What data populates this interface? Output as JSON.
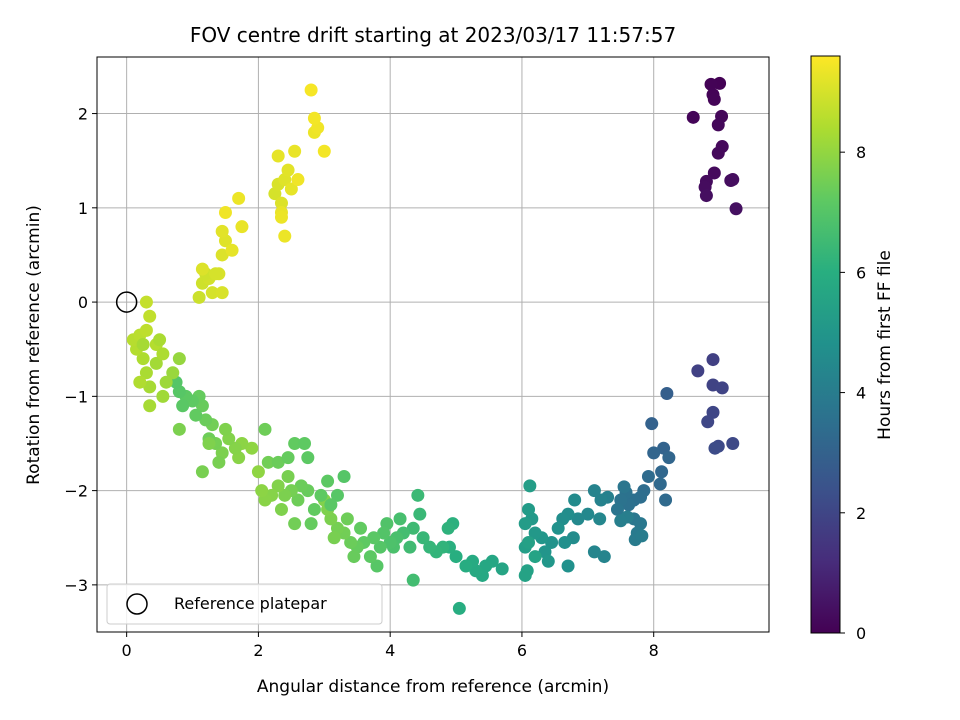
{
  "chart_data": {
    "type": "scatter",
    "title": "FOV centre drift starting at 2023/03/17 11:57:57",
    "xlabel": "Angular distance from reference (arcmin)",
    "ylabel": "Rotation from reference (arcmin)",
    "xlim": [
      -0.45,
      9.75
    ],
    "ylim": [
      -3.5,
      2.6
    ],
    "xticks": [
      0,
      2,
      4,
      6,
      8
    ],
    "yticks": [
      -3,
      -2,
      -1,
      0,
      1,
      2
    ],
    "grid": true,
    "legend": {
      "position": "lower-left",
      "entries": [
        "Reference platepar"
      ]
    },
    "reference_point": {
      "x": 0,
      "y": 0
    },
    "colorbar": {
      "label": "Hours from first FF file",
      "colormap": "viridis",
      "range": [
        0,
        9.6
      ],
      "ticks": [
        0,
        2,
        4,
        6,
        8
      ]
    },
    "points": [
      [
        9.0,
        2.32,
        0.02
      ],
      [
        8.87,
        2.31,
        0.05
      ],
      [
        8.9,
        2.2,
        0.08
      ],
      [
        8.92,
        2.15,
        0.1
      ],
      [
        8.6,
        1.96,
        0.12
      ],
      [
        9.03,
        1.97,
        0.15
      ],
      [
        8.98,
        1.88,
        0.18
      ],
      [
        9.04,
        1.65,
        0.2
      ],
      [
        8.98,
        1.58,
        0.22
      ],
      [
        8.92,
        1.37,
        0.25
      ],
      [
        8.8,
        1.28,
        0.28
      ],
      [
        8.78,
        1.22,
        0.3
      ],
      [
        9.17,
        1.29,
        0.32
      ],
      [
        9.2,
        1.3,
        0.35
      ],
      [
        8.8,
        1.13,
        0.38
      ],
      [
        9.25,
        0.99,
        0.4
      ],
      [
        8.9,
        -0.61,
        1.8
      ],
      [
        8.67,
        -0.73,
        1.85
      ],
      [
        8.9,
        -0.88,
        1.9
      ],
      [
        9.04,
        -0.91,
        1.95
      ],
      [
        8.9,
        -1.17,
        2.0
      ],
      [
        8.82,
        -1.27,
        2.05
      ],
      [
        9.2,
        -1.5,
        2.1
      ],
      [
        8.98,
        -1.53,
        2.15
      ],
      [
        8.93,
        -1.55,
        2.2
      ],
      [
        8.2,
        -0.97,
        2.9
      ],
      [
        7.97,
        -1.29,
        3.0
      ],
      [
        8.15,
        -1.55,
        3.05
      ],
      [
        8.0,
        -1.6,
        3.1
      ],
      [
        8.23,
        -1.65,
        3.15
      ],
      [
        8.12,
        -1.8,
        3.2
      ],
      [
        8.1,
        -1.93,
        3.25
      ],
      [
        8.18,
        -2.1,
        3.3
      ],
      [
        7.92,
        -1.85,
        3.35
      ],
      [
        7.85,
        -2.0,
        3.4
      ],
      [
        7.8,
        -2.07,
        3.45
      ],
      [
        7.7,
        -2.1,
        3.5
      ],
      [
        7.62,
        -2.15,
        3.55
      ],
      [
        7.58,
        -2.02,
        3.6
      ],
      [
        7.5,
        -2.1,
        3.65
      ],
      [
        7.45,
        -2.2,
        3.7
      ],
      [
        7.55,
        -1.96,
        3.75
      ],
      [
        7.7,
        -2.3,
        3.8
      ],
      [
        7.8,
        -2.35,
        3.85
      ],
      [
        7.75,
        -2.45,
        3.9
      ],
      [
        7.72,
        -2.52,
        3.95
      ],
      [
        7.82,
        -2.48,
        4.0
      ],
      [
        7.6,
        -2.28,
        4.05
      ],
      [
        7.5,
        -2.32,
        4.1
      ],
      [
        7.3,
        -2.07,
        4.15
      ],
      [
        7.2,
        -2.1,
        4.2
      ],
      [
        7.1,
        -2.0,
        4.25
      ],
      [
        7.25,
        -2.7,
        4.3
      ],
      [
        7.1,
        -2.65,
        4.35
      ],
      [
        7.18,
        -2.3,
        4.4
      ],
      [
        7.0,
        -2.25,
        4.45
      ],
      [
        6.85,
        -2.3,
        4.5
      ],
      [
        6.8,
        -2.1,
        4.55
      ],
      [
        6.78,
        -2.5,
        4.6
      ],
      [
        6.7,
        -2.25,
        4.65
      ],
      [
        6.62,
        -2.3,
        4.7
      ],
      [
        6.65,
        -2.55,
        4.75
      ],
      [
        6.7,
        -2.8,
        4.8
      ],
      [
        6.55,
        -2.4,
        4.85
      ],
      [
        6.45,
        -2.55,
        4.9
      ],
      [
        6.35,
        -2.65,
        4.95
      ],
      [
        6.3,
        -2.5,
        5.0
      ],
      [
        6.4,
        -2.75,
        5.05
      ],
      [
        6.2,
        -2.45,
        5.1
      ],
      [
        6.15,
        -2.3,
        5.15
      ],
      [
        6.1,
        -2.2,
        5.2
      ],
      [
        6.05,
        -2.35,
        5.25
      ],
      [
        6.12,
        -1.95,
        5.3
      ],
      [
        6.05,
        -2.6,
        5.35
      ],
      [
        6.1,
        -2.55,
        5.4
      ],
      [
        6.08,
        -2.85,
        5.45
      ],
      [
        6.05,
        -2.9,
        5.5
      ],
      [
        6.2,
        -2.7,
        5.55
      ],
      [
        5.7,
        -2.83,
        5.6
      ],
      [
        5.55,
        -2.75,
        5.65
      ],
      [
        5.45,
        -2.8,
        5.7
      ],
      [
        5.4,
        -2.9,
        5.75
      ],
      [
        5.3,
        -2.85,
        5.8
      ],
      [
        5.25,
        -2.75,
        5.85
      ],
      [
        5.15,
        -2.8,
        5.9
      ],
      [
        5.05,
        -3.25,
        5.95
      ],
      [
        5.0,
        -2.7,
        6.0
      ],
      [
        4.9,
        -2.6,
        6.05
      ],
      [
        4.95,
        -2.35,
        6.1
      ],
      [
        4.88,
        -2.4,
        6.15
      ],
      [
        4.8,
        -2.6,
        6.2
      ],
      [
        4.7,
        -2.65,
        6.25
      ],
      [
        4.6,
        -2.6,
        6.3
      ],
      [
        4.5,
        -2.5,
        6.35
      ],
      [
        4.45,
        -2.25,
        6.4
      ],
      [
        4.42,
        -2.05,
        6.45
      ],
      [
        4.35,
        -2.4,
        6.5
      ],
      [
        4.3,
        -2.6,
        6.55
      ],
      [
        4.35,
        -2.95,
        6.6
      ],
      [
        4.2,
        -2.45,
        6.65
      ],
      [
        4.15,
        -2.3,
        6.7
      ],
      [
        4.1,
        -2.5,
        6.75
      ],
      [
        4.05,
        -2.6,
        6.8
      ],
      [
        4.0,
        -2.55,
        6.85
      ],
      [
        3.95,
        -2.35,
        6.9
      ],
      [
        3.9,
        -2.45,
        6.95
      ],
      [
        3.85,
        -2.6,
        7.0
      ],
      [
        3.8,
        -2.8,
        7.05
      ],
      [
        3.75,
        -2.5,
        7.1
      ],
      [
        3.7,
        -2.7,
        7.15
      ],
      [
        3.6,
        -2.55,
        7.2
      ],
      [
        3.55,
        -2.4,
        7.25
      ],
      [
        3.5,
        -2.6,
        7.3
      ],
      [
        3.45,
        -2.7,
        7.35
      ],
      [
        3.4,
        -2.55,
        7.4
      ],
      [
        3.35,
        -2.3,
        7.45
      ],
      [
        3.3,
        -2.45,
        7.5
      ],
      [
        3.2,
        -2.4,
        7.55
      ],
      [
        3.15,
        -2.5,
        7.6
      ],
      [
        3.1,
        -2.3,
        7.65
      ],
      [
        3.05,
        -2.2,
        7.7
      ],
      [
        3.0,
        -2.1,
        7.75
      ],
      [
        3.3,
        -1.85,
        7.0
      ],
      [
        3.2,
        -2.05,
        7.05
      ],
      [
        3.1,
        -2.15,
        7.1
      ],
      [
        3.05,
        -1.9,
        7.15
      ],
      [
        2.95,
        -2.05,
        7.2
      ],
      [
        2.85,
        -2.2,
        7.25
      ],
      [
        2.8,
        -2.35,
        7.3
      ],
      [
        2.75,
        -2.0,
        7.35
      ],
      [
        2.65,
        -1.95,
        7.4
      ],
      [
        2.6,
        -2.1,
        7.45
      ],
      [
        2.55,
        -2.35,
        7.5
      ],
      [
        2.5,
        -2.0,
        7.55
      ],
      [
        2.45,
        -1.85,
        7.6
      ],
      [
        2.4,
        -2.05,
        7.65
      ],
      [
        2.35,
        -2.2,
        7.7
      ],
      [
        2.3,
        -1.95,
        7.75
      ],
      [
        2.2,
        -2.05,
        7.8
      ],
      [
        2.1,
        -2.1,
        7.85
      ],
      [
        2.05,
        -2.0,
        7.9
      ],
      [
        2.0,
        -1.8,
        7.95
      ],
      [
        1.9,
        -1.55,
        7.95
      ],
      [
        1.75,
        -1.5,
        7.9
      ],
      [
        1.7,
        -1.65,
        7.85
      ],
      [
        1.65,
        -1.55,
        7.8
      ],
      [
        1.55,
        -1.45,
        7.75
      ],
      [
        1.5,
        -1.35,
        7.7
      ],
      [
        1.45,
        -1.6,
        7.65
      ],
      [
        1.4,
        -1.7,
        7.6
      ],
      [
        1.35,
        -1.5,
        7.55
      ],
      [
        1.3,
        -1.3,
        7.5
      ],
      [
        1.25,
        -1.45,
        7.45
      ],
      [
        1.2,
        -1.25,
        7.4
      ],
      [
        1.15,
        -1.1,
        7.35
      ],
      [
        1.1,
        -1.0,
        7.3
      ],
      [
        1.05,
        -1.2,
        7.25
      ],
      [
        1.0,
        -1.05,
        7.2
      ],
      [
        0.9,
        -1.0,
        7.15
      ],
      [
        0.85,
        -1.1,
        7.1
      ],
      [
        0.8,
        -0.95,
        7.05
      ],
      [
        0.75,
        -0.85,
        7.0
      ],
      [
        2.15,
        -1.7,
        7.5
      ],
      [
        2.3,
        -1.7,
        7.4
      ],
      [
        2.45,
        -1.65,
        7.3
      ],
      [
        2.55,
        -1.5,
        7.25
      ],
      [
        2.7,
        -1.5,
        7.2
      ],
      [
        2.75,
        -1.65,
        7.15
      ],
      [
        2.1,
        -1.35,
        7.45
      ],
      [
        1.15,
        -1.8,
        7.6
      ],
      [
        1.25,
        -1.5,
        7.7
      ],
      [
        0.8,
        -1.35,
        7.65
      ],
      [
        0.8,
        -0.6,
        8.05
      ],
      [
        0.7,
        -0.75,
        8.1
      ],
      [
        0.6,
        -0.85,
        8.15
      ],
      [
        0.55,
        -1.0,
        8.2
      ],
      [
        0.45,
        -0.65,
        8.25
      ],
      [
        0.35,
        -0.9,
        8.3
      ],
      [
        0.3,
        -0.75,
        8.35
      ],
      [
        0.25,
        -0.6,
        8.4
      ],
      [
        0.2,
        -0.85,
        8.45
      ],
      [
        0.15,
        -0.5,
        8.5
      ],
      [
        0.1,
        -0.4,
        8.55
      ],
      [
        0.2,
        -0.35,
        8.6
      ],
      [
        0.3,
        -0.3,
        8.65
      ],
      [
        0.35,
        -0.15,
        8.7
      ],
      [
        0.3,
        0.0,
        8.75
      ],
      [
        0.45,
        -0.45,
        8.5
      ],
      [
        0.55,
        -0.55,
        8.4
      ],
      [
        0.5,
        -0.4,
        8.35
      ],
      [
        0.35,
        -1.1,
        8.3
      ],
      [
        0.25,
        -0.45,
        8.3
      ],
      [
        1.1,
        0.05,
        8.85
      ],
      [
        1.15,
        0.2,
        8.9
      ],
      [
        1.25,
        0.25,
        8.95
      ],
      [
        1.3,
        0.1,
        9.0
      ],
      [
        1.4,
        0.3,
        9.05
      ],
      [
        1.45,
        0.5,
        9.1
      ],
      [
        1.5,
        0.65,
        9.15
      ],
      [
        1.45,
        0.75,
        9.2
      ],
      [
        1.6,
        0.55,
        9.25
      ],
      [
        1.75,
        0.8,
        9.3
      ],
      [
        1.7,
        1.1,
        9.35
      ],
      [
        1.5,
        0.95,
        9.4
      ],
      [
        1.2,
        0.3,
        8.9
      ],
      [
        1.35,
        0.3,
        9.0
      ],
      [
        1.45,
        0.1,
        9.05
      ],
      [
        1.15,
        0.35,
        9.1
      ],
      [
        2.25,
        1.15,
        9.0
      ],
      [
        2.3,
        1.25,
        9.05
      ],
      [
        2.35,
        1.05,
        9.1
      ],
      [
        2.4,
        1.3,
        9.15
      ],
      [
        2.45,
        1.4,
        9.2
      ],
      [
        2.5,
        1.2,
        9.25
      ],
      [
        2.35,
        0.95,
        9.3
      ],
      [
        2.4,
        0.7,
        9.35
      ],
      [
        2.6,
        1.3,
        9.4
      ],
      [
        2.3,
        1.55,
        9.25
      ],
      [
        2.55,
        1.6,
        9.3
      ],
      [
        2.85,
        1.8,
        9.35
      ],
      [
        2.9,
        1.85,
        9.4
      ],
      [
        2.85,
        1.95,
        9.45
      ],
      [
        3.0,
        1.6,
        9.45
      ],
      [
        2.8,
        2.25,
        9.5
      ],
      [
        2.35,
        0.9,
        9.35
      ]
    ]
  }
}
